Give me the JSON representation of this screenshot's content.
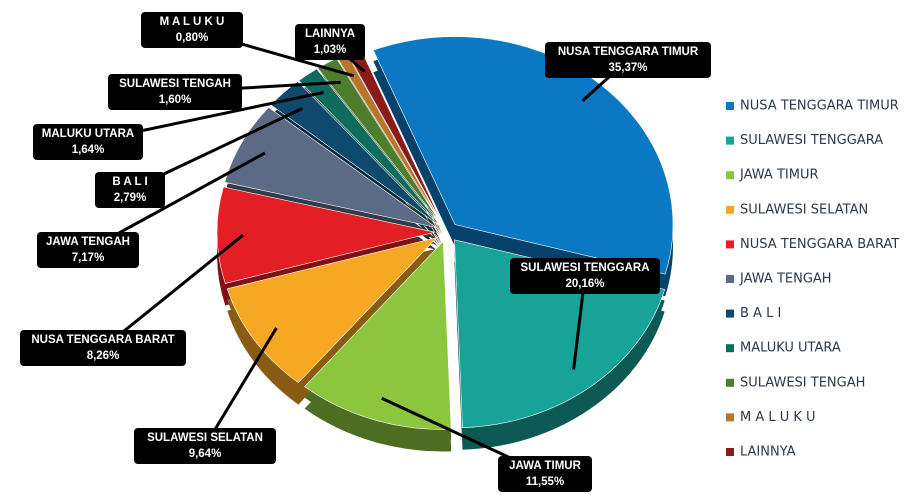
{
  "chart_data": {
    "type": "pie",
    "categories": [
      "NUSA TENGGARA TIMUR",
      "SULAWESI TENGGARA",
      "JAWA TIMUR",
      "SULAWESI SELATAN",
      "NUSA TENGGARA BARAT",
      "JAWA TENGAH",
      "B A L I",
      "MALUKU UTARA",
      "SULAWESI TENGAH",
      "M A L U K U",
      "LAINNYA"
    ],
    "values": [
      35.37,
      20.16,
      11.55,
      9.64,
      8.26,
      7.17,
      2.79,
      1.64,
      1.6,
      0.8,
      1.03
    ],
    "value_labels": [
      "35,37%",
      "20,16%",
      "11,55%",
      "9,64%",
      "8,26%",
      "7,17%",
      "2,79%",
      "1,64%",
      "1,60%",
      "0,80%",
      "1,03%"
    ],
    "colors": [
      "#0a78c2",
      "#17a398",
      "#8cc63f",
      "#f7a823",
      "#e31e24",
      "#5b6b85",
      "#0e4a6e",
      "#0f6b5e",
      "#4e7d2c",
      "#b8742b",
      "#8b1a1a"
    ],
    "legend": "right"
  }
}
